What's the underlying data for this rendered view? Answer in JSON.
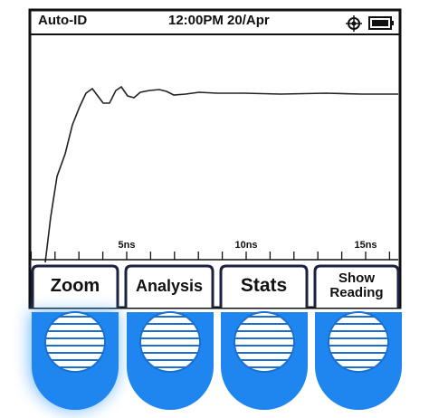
{
  "status_bar": {
    "mode": "Auto-ID",
    "datetime": "12:00PM 20/Apr"
  },
  "plot": {
    "x_tick_labels": [
      "5ns",
      "10ns",
      "15ns"
    ]
  },
  "softkeys": [
    "Zoom",
    "Analysis",
    "Stats",
    "Show Reading"
  ]
}
